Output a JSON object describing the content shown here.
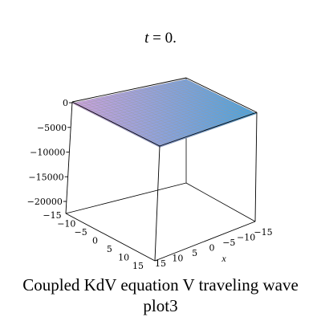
{
  "caption": {
    "line1": "Coupled KdV equation V traveling wave",
    "line2": "plot3"
  },
  "chart_data": {
    "type": "surface3d",
    "title_var": "t",
    "title_eq": " = 0.",
    "xlabel": "x",
    "ylabel": "",
    "zlabel": "",
    "xlim": [
      -15,
      15
    ],
    "ylim": [
      -15,
      15
    ],
    "zlim": [
      -20000,
      0
    ],
    "x_ticks": [
      "15",
      "10",
      "5",
      "0",
      "−5",
      "−10",
      "−15"
    ],
    "y_ticks": [
      "−15",
      "−10",
      "−5",
      "0",
      "5",
      "10",
      "15"
    ],
    "z_ticks": [
      "0",
      "−5000",
      "−10000",
      "−15000",
      "−20000"
    ],
    "surface_value_approx": 0,
    "colors": {
      "surface_a": "#c060e0",
      "surface_b": "#5060e0",
      "surface_c": "#40d8d8",
      "surface_d": "#d8d8d8",
      "grid_line": "#9a9a9a",
      "box_line": "#000000"
    }
  }
}
